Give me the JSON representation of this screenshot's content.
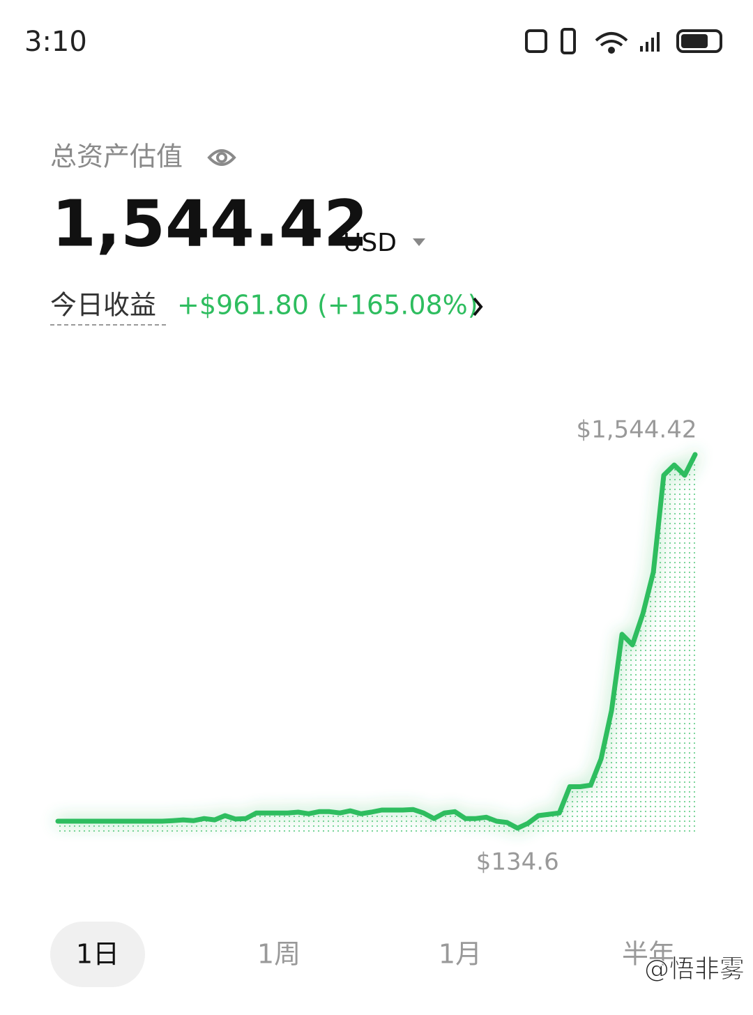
{
  "status_bar": {
    "time": "3:10"
  },
  "header": {
    "label": "总资产估值",
    "value": "1,544.42",
    "currency": "USD"
  },
  "today": {
    "label": "今日收益",
    "value": "+$961.80 (+165.08%)"
  },
  "chart_data": {
    "type": "line",
    "color": "#2ebd5f",
    "values": [
      161,
      161,
      161,
      161,
      161,
      161,
      161,
      161,
      161,
      161,
      161,
      163,
      166,
      163,
      171,
      166,
      182,
      169,
      171,
      192,
      192,
      192,
      192,
      195,
      189,
      197,
      197,
      192,
      200,
      189,
      195,
      203,
      203,
      203,
      205,
      192,
      171,
      192,
      197,
      171,
      171,
      176,
      161,
      156,
      134.6,
      153,
      182,
      187,
      192,
      291,
      291,
      297,
      396,
      578,
      866,
      826,
      944,
      1101,
      1466,
      1505,
      1466,
      1544.42
    ],
    "annotations": [
      {
        "label": "$1,544.42",
        "value": 1544.42
      },
      {
        "label": "$134.6",
        "value": 134.6
      }
    ]
  },
  "tabs": [
    "1日",
    "1周",
    "1月",
    "半年"
  ],
  "watermark": "@悟非雾"
}
